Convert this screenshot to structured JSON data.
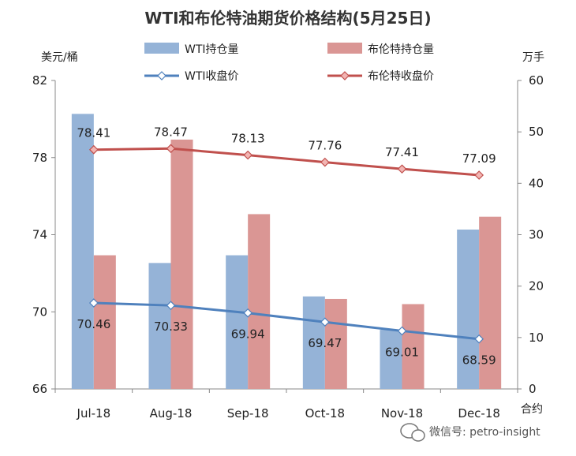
{
  "chart_data": {
    "type": "bar+line",
    "title": "WTI和布伦特油期货价格结构(5月25日)",
    "left_axis_label": "美元/桶",
    "right_axis_label": "万手",
    "x_axis_label": "合约",
    "categories": [
      "Jul-18",
      "Aug-18",
      "Sep-18",
      "Oct-18",
      "Nov-18",
      "Dec-18"
    ],
    "left_axis": {
      "min": 66,
      "max": 82,
      "ticks": [
        66,
        70,
        74,
        78,
        82
      ]
    },
    "right_axis": {
      "min": 0,
      "max": 60,
      "ticks": [
        0,
        10,
        20,
        30,
        40,
        50,
        60
      ]
    },
    "bar_series": [
      {
        "name": "WTI持仓量",
        "axis": "right",
        "color": "#95b3d7",
        "values": [
          53.5,
          24.5,
          26,
          18,
          11.5,
          31
        ]
      },
      {
        "name": "布伦特持仓量",
        "axis": "right",
        "color": "#da9694",
        "values": [
          26,
          48.5,
          34,
          17.5,
          16.5,
          33.5
        ]
      }
    ],
    "line_series": [
      {
        "name": "WTI收盘价",
        "axis": "left",
        "color": "#4f81bd",
        "marker": "diamond",
        "values": [
          70.46,
          70.33,
          69.94,
          69.47,
          69.01,
          68.59
        ]
      },
      {
        "name": "布伦特收盘价",
        "axis": "left",
        "color": "#c0504d",
        "marker": "diamond",
        "values": [
          78.41,
          78.47,
          78.13,
          77.76,
          77.41,
          77.09
        ]
      }
    ],
    "legend_placement": "top",
    "grid": false
  },
  "watermark": {
    "text": "微信号: petro-insight"
  }
}
